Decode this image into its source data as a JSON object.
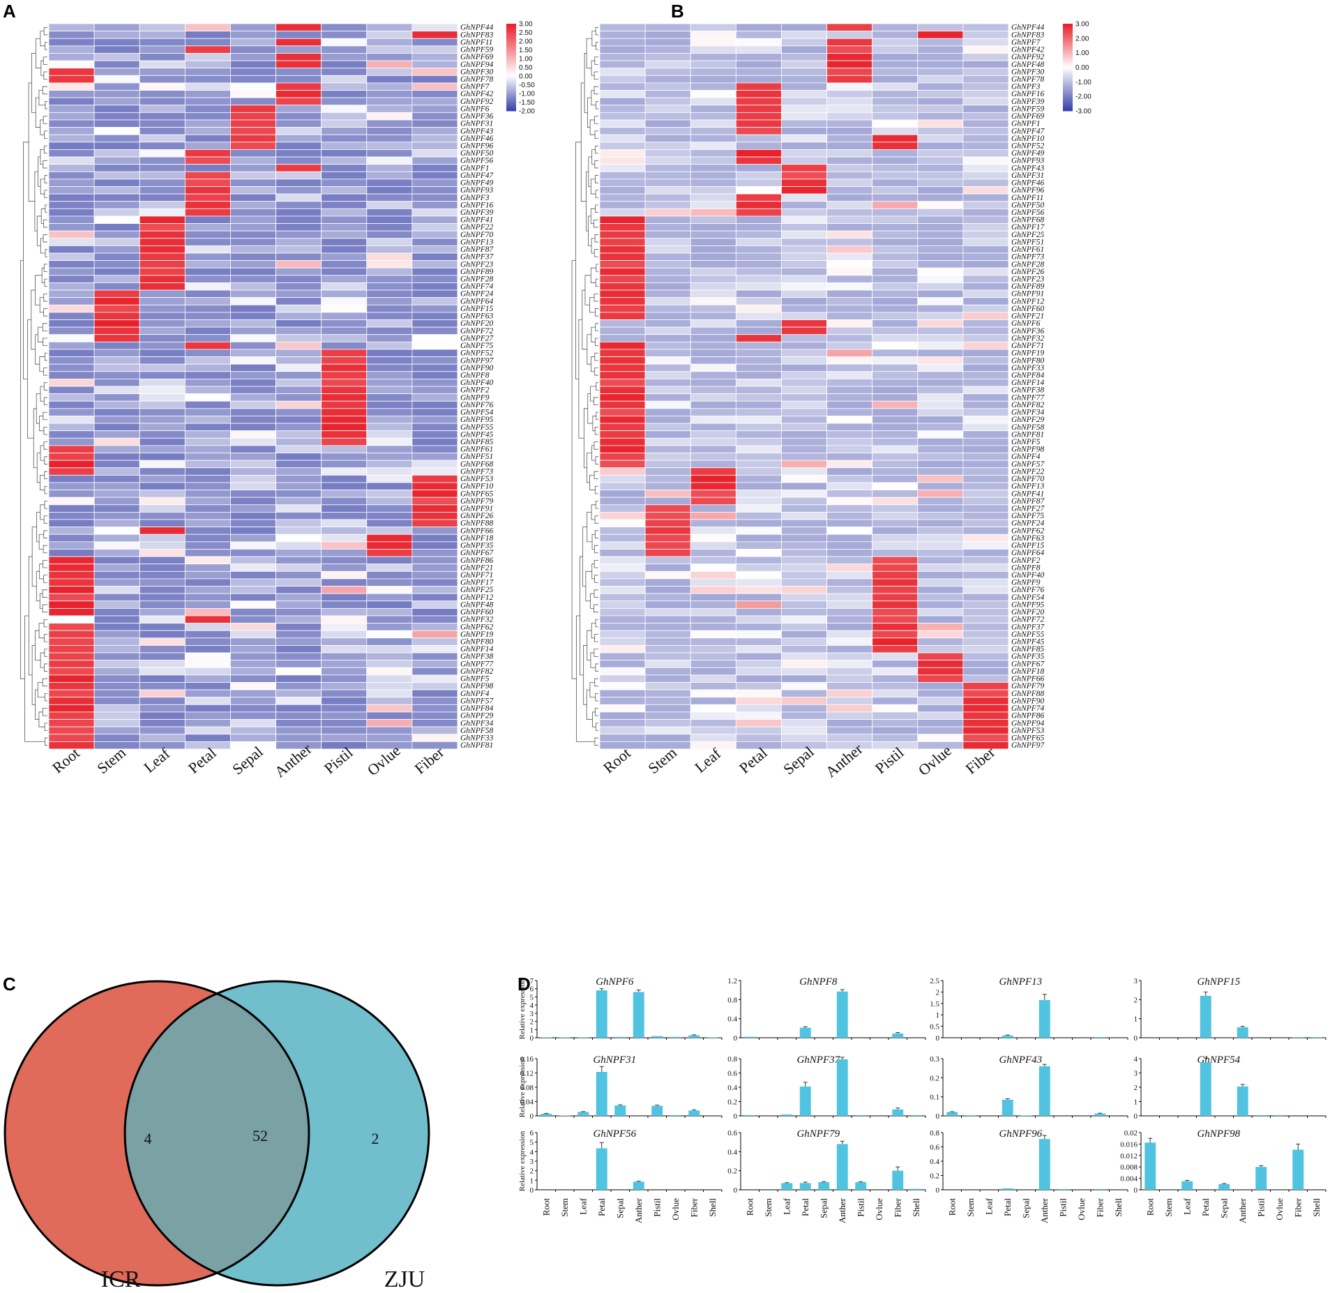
{
  "colors": {
    "high": "#e8222c",
    "mid": "#ffffff",
    "low": "#3b44a8",
    "bar": "#4fc3df",
    "venn_left": "#e06b5b",
    "venn_right": "#71bfcd",
    "venn_overlap": "#7aa2a4"
  },
  "chart_data": [
    {
      "panel": "A",
      "type": "heatmap",
      "columns": [
        "Root",
        "Stem",
        "Leaf",
        "Petal",
        "Sepal",
        "Anther",
        "Pistil",
        "Ovlue",
        "Fiber"
      ],
      "rows": [
        "GhNPF44",
        "GhNPF83",
        "GhNPF11",
        "GhNPF59",
        "GhNPF69",
        "GhNPF94",
        "GhNPF30",
        "GhNPF78",
        "GhNPF7",
        "GhNPF42",
        "GhNPF92",
        "GhNPF6",
        "GhNPF36",
        "GhNPF31",
        "GhNPF43",
        "GhNPF46",
        "GhNPF96",
        "GhNPF50",
        "GhNPF56",
        "GhNPF1",
        "GhNPF47",
        "GhNPF49",
        "GhNPF93",
        "GhNPF3",
        "GhNPF16",
        "GhNPF39",
        "GhNPF41",
        "GhNPF22",
        "GhNPF70",
        "GhNPF13",
        "GhNPF87",
        "GhNPF37",
        "GhNPF23",
        "GhNPF89",
        "GhNPF28",
        "GhNPF74",
        "GhNPF24",
        "GhNPF64",
        "GhNPF15",
        "GhNPF63",
        "GhNPF20",
        "GhNPF72",
        "GhNPF27",
        "GhNPF75",
        "GhNPF52",
        "GhNPF97",
        "GhNPF90",
        "GhNPF8",
        "GhNPF40",
        "GhNPF2",
        "GhNPF9",
        "GhNPF76",
        "GhNPF54",
        "GhNPF95",
        "GhNPF55",
        "GhNPF45",
        "GhNPF85",
        "GhNPF61",
        "GhNPF51",
        "GhNPF68",
        "GhNPF73",
        "GhNPF53",
        "GhNPF10",
        "GhNPF65",
        "GhNPF79",
        "GhNPF91",
        "GhNPF26",
        "GhNPF88",
        "GhNPF66",
        "GhNPF18",
        "GhNPF35",
        "GhNPF67",
        "GhNPF86",
        "GhNPF21",
        "GhNPF71",
        "GhNPF17",
        "GhNPF25",
        "GhNPF12",
        "GhNPF48",
        "GhNPF60",
        "GhNPF32",
        "GhNPF62",
        "GhNPF19",
        "GhNPF80",
        "GhNPF14",
        "GhNPF38",
        "GhNPF77",
        "GhNPF82",
        "GhNPF5",
        "GhNPF98",
        "GhNPF4",
        "GhNPF57",
        "GhNPF84",
        "GhNPF29",
        "GhNPF34",
        "GhNPF58",
        "GhNPF33",
        "GhNPF81"
      ],
      "peak_column": [
        5,
        8,
        5,
        3,
        5,
        5,
        0,
        0,
        5,
        5,
        5,
        4,
        4,
        4,
        4,
        4,
        4,
        3,
        3,
        5,
        3,
        3,
        3,
        3,
        3,
        3,
        2,
        2,
        2,
        2,
        2,
        2,
        2,
        2,
        2,
        2,
        1,
        1,
        1,
        1,
        1,
        1,
        1,
        3,
        6,
        6,
        6,
        6,
        6,
        6,
        6,
        6,
        6,
        6,
        6,
        6,
        6,
        0,
        0,
        0,
        0,
        8,
        8,
        8,
        8,
        8,
        8,
        8,
        2,
        7,
        7,
        7,
        0,
        0,
        0,
        0,
        0,
        0,
        0,
        0,
        3,
        0,
        0,
        0,
        0,
        0,
        0,
        0,
        0,
        0,
        0,
        0,
        0,
        0,
        0,
        0,
        0,
        0
      ],
      "legend": {
        "max": 3.0,
        "min": -2.0,
        "ticks": [
          "3.00",
          "2.50",
          "2.00",
          "1.50",
          "1.00",
          "0.50",
          "0.00",
          "-0.50",
          "-1.00",
          "-1.50",
          "-2.00"
        ]
      }
    },
    {
      "panel": "B",
      "type": "heatmap",
      "columns": [
        "Root",
        "Stem",
        "Leaf",
        "Petal",
        "Sepal",
        "Anther",
        "Pistil",
        "Ovlue",
        "Fiber"
      ],
      "rows": [
        "GhNPF44",
        "GhNPF83",
        "GhNPF7",
        "GhNPF42",
        "GhNPF92",
        "GhNPF48",
        "GhNPF30",
        "GhNPF78",
        "GhNPF3",
        "GhNPF16",
        "GhNPF39",
        "GhNPF59",
        "GhNPF69",
        "GhNPF1",
        "GhNPF47",
        "GhNPF10",
        "GhNPF52",
        "GhNPF49",
        "GhNPF93",
        "GhNPF43",
        "GhNPF31",
        "GhNPF46",
        "GhNPF96",
        "GhNPF11",
        "GhNPF50",
        "GhNPF56",
        "GhNPF68",
        "GhNPF17",
        "GhNPF25",
        "GhNPF51",
        "GhNPF61",
        "GhNPF73",
        "GhNPF28",
        "GhNPF26",
        "GhNPF23",
        "GhNPF89",
        "GhNPF91",
        "GhNPF12",
        "GhNPF60",
        "GhNPF21",
        "GhNPF6",
        "GhNPF36",
        "GhNPF32",
        "GhNPF71",
        "GhNPF19",
        "GhNPF80",
        "GhNPF33",
        "GhNPF84",
        "GhNPF14",
        "GhNPF38",
        "GhNPF77",
        "GhNPF82",
        "GhNPF34",
        "GhNPF29",
        "GhNPF58",
        "GhNPF81",
        "GhNPF5",
        "GhNPF98",
        "GhNPF4",
        "GhNPF57",
        "GhNPF22",
        "GhNPF70",
        "GhNPF13",
        "GhNPF41",
        "GhNPF87",
        "GhNPF27",
        "GhNPF75",
        "GhNPF24",
        "GhNPF62",
        "GhNPF63",
        "GhNPF15",
        "GhNPF64",
        "GhNPF2",
        "GhNPF8",
        "GhNPF40",
        "GhNPF9",
        "GhNPF76",
        "GhNPF54",
        "GhNPF95",
        "GhNPF20",
        "GhNPF72",
        "GhNPF37",
        "GhNPF55",
        "GhNPF45",
        "GhNPF85",
        "GhNPF35",
        "GhNPF67",
        "GhNPF18",
        "GhNPF66",
        "GhNPF79",
        "GhNPF88",
        "GhNPF90",
        "GhNPF74",
        "GhNPF86",
        "GhNPF94",
        "GhNPF53",
        "GhNPF65",
        "GhNPF97"
      ],
      "peak_column": [
        5,
        7,
        5,
        5,
        5,
        5,
        5,
        5,
        3,
        3,
        3,
        3,
        3,
        3,
        3,
        6,
        6,
        3,
        3,
        4,
        4,
        4,
        4,
        3,
        3,
        3,
        0,
        0,
        0,
        0,
        0,
        0,
        0,
        0,
        0,
        0,
        0,
        0,
        0,
        0,
        4,
        4,
        3,
        0,
        0,
        0,
        0,
        0,
        0,
        0,
        0,
        0,
        0,
        0,
        0,
        0,
        0,
        0,
        0,
        0,
        2,
        2,
        2,
        2,
        2,
        1,
        1,
        1,
        1,
        1,
        1,
        1,
        6,
        6,
        6,
        6,
        6,
        6,
        6,
        6,
        6,
        6,
        6,
        6,
        6,
        7,
        7,
        7,
        7,
        8,
        8,
        8,
        8,
        8,
        8,
        8,
        8,
        8
      ],
      "legend": {
        "max": 3.0,
        "min": -3.0,
        "ticks": [
          "3.00",
          "2.00",
          "1.00",
          "0.00",
          "-1.00",
          "-2.00",
          "-3.00"
        ]
      }
    },
    {
      "panel": "C",
      "type": "venn",
      "sets": [
        {
          "name": "ICR",
          "unique": 4
        },
        {
          "name": "ZJU",
          "unique": 2
        }
      ],
      "overlap": 52
    },
    {
      "panel": "D",
      "type": "bar",
      "ylabel": "Relative expression",
      "categories": [
        "Root",
        "Stem",
        "Leaf",
        "Petal",
        "Sepal",
        "Anther",
        "Pistil",
        "Ovlue",
        "Fiber",
        "Shell"
      ],
      "panels": [
        {
          "title": "GhNPF6",
          "ylim": [
            0,
            7
          ],
          "yticks": [
            "0",
            "1",
            "2",
            "3",
            "4",
            "5",
            "6",
            "7"
          ],
          "values": [
            0.05,
            0.05,
            0.05,
            5.8,
            0.1,
            5.6,
            0.2,
            0.1,
            0.3,
            0.05
          ],
          "errors": [
            0,
            0,
            0,
            0.2,
            0,
            0.25,
            0,
            0,
            0.05,
            0
          ]
        },
        {
          "title": "GhNPF8",
          "ylim": [
            0,
            1.2
          ],
          "yticks": [
            "0",
            "0.4",
            "0.8",
            "1.2"
          ],
          "values": [
            0.02,
            0,
            0,
            0.21,
            0,
            0.97,
            0,
            0,
            0.09,
            0
          ],
          "errors": [
            0,
            0,
            0,
            0.02,
            0,
            0.04,
            0,
            0,
            0.02,
            0
          ]
        },
        {
          "title": "GhNPF13",
          "ylim": [
            0,
            2.5
          ],
          "yticks": [
            "0",
            "0.5",
            "1",
            "1.5",
            "2",
            "2.5"
          ],
          "values": [
            0,
            0,
            0,
            0.1,
            0,
            1.65,
            0,
            0,
            0.03,
            0
          ],
          "errors": [
            0,
            0,
            0,
            0.02,
            0,
            0.25,
            0,
            0,
            0,
            0
          ]
        },
        {
          "title": "GhNPF15",
          "ylim": [
            0,
            3
          ],
          "yticks": [
            "0",
            "1",
            "2",
            "3"
          ],
          "values": [
            0,
            0,
            0,
            2.2,
            0,
            0.55,
            0,
            0,
            0.03,
            0.03
          ],
          "errors": [
            0,
            0,
            0,
            0.2,
            0,
            0.05,
            0,
            0,
            0,
            0
          ]
        },
        {
          "title": "GhNPF31",
          "ylim": [
            0,
            0.16
          ],
          "yticks": [
            "0",
            "0.04",
            "0.08",
            "0.12",
            "0.16"
          ],
          "values": [
            0.006,
            0.001,
            0.011,
            0.123,
            0.029,
            0,
            0.028,
            0.002,
            0.015,
            0
          ],
          "errors": [
            0.001,
            0,
            0.001,
            0.015,
            0.002,
            0,
            0.002,
            0,
            0.002,
            0
          ]
        },
        {
          "title": "GhNPF37",
          "ylim": [
            0,
            0.8
          ],
          "yticks": [
            "0",
            "0.2",
            "0.4",
            "0.6",
            "0.8"
          ],
          "values": [
            0.01,
            0,
            0.02,
            0.41,
            0,
            0.79,
            0.01,
            0,
            0.09,
            0.01
          ],
          "errors": [
            0,
            0,
            0,
            0.06,
            0,
            0.03,
            0,
            0,
            0.02,
            0
          ]
        },
        {
          "title": "GhNPF43",
          "ylim": [
            0,
            0.3
          ],
          "yticks": [
            "0",
            "0.1",
            "0.2",
            "0.3"
          ],
          "values": [
            0.02,
            0.003,
            0,
            0.085,
            0.002,
            0.26,
            0,
            0,
            0.012,
            0
          ],
          "errors": [
            0.002,
            0,
            0,
            0.005,
            0,
            0.01,
            0,
            0,
            0.002,
            0
          ]
        },
        {
          "title": "GhNPF54",
          "ylim": [
            0,
            4
          ],
          "yticks": [
            "0",
            "1",
            "2",
            "3",
            "4"
          ],
          "values": [
            0,
            0,
            0,
            3.75,
            0,
            2.05,
            0.05,
            0.05,
            0,
            0
          ],
          "errors": [
            0,
            0,
            0,
            0.3,
            0,
            0.15,
            0,
            0,
            0,
            0
          ]
        },
        {
          "title": "GhNPF56",
          "ylim": [
            0,
            6
          ],
          "yticks": [
            "0",
            "1",
            "2",
            "3",
            "4",
            "5",
            "6"
          ],
          "values": [
            0,
            0,
            0,
            4.35,
            0,
            0.85,
            0,
            0,
            0,
            0
          ],
          "errors": [
            0,
            0,
            0,
            0.6,
            0,
            0.05,
            0,
            0,
            0,
            0
          ]
        },
        {
          "title": "GhNPF79",
          "ylim": [
            0,
            0.6
          ],
          "yticks": [
            "0",
            "0.2",
            "0.4",
            "0.6"
          ],
          "values": [
            0,
            0,
            0.07,
            0.07,
            0.08,
            0.48,
            0.08,
            0,
            0.2,
            0.01
          ],
          "errors": [
            0,
            0,
            0.005,
            0.01,
            0.005,
            0.03,
            0.005,
            0,
            0.04,
            0
          ]
        },
        {
          "title": "GhNPF96",
          "ylim": [
            0,
            0.8
          ],
          "yticks": [
            "0",
            "0.2",
            "0.4",
            "0.6",
            "0.8"
          ],
          "values": [
            0,
            0,
            0,
            0.02,
            0,
            0.71,
            0.01,
            0,
            0.01,
            0
          ],
          "errors": [
            0,
            0,
            0,
            0,
            0,
            0.05,
            0,
            0,
            0,
            0
          ]
        },
        {
          "title": "GhNPF98",
          "ylim": [
            0,
            0.02
          ],
          "yticks": [
            "0",
            "0.004",
            "0.008",
            "0.012",
            "0.016",
            "0.02"
          ],
          "values": [
            0.0165,
            0,
            0.003,
            0,
            0.002,
            0,
            0.008,
            0,
            0.014,
            0
          ],
          "errors": [
            0.0015,
            0,
            0.0003,
            0,
            0.0002,
            0,
            0.0004,
            0,
            0.002,
            0
          ]
        }
      ]
    }
  ]
}
